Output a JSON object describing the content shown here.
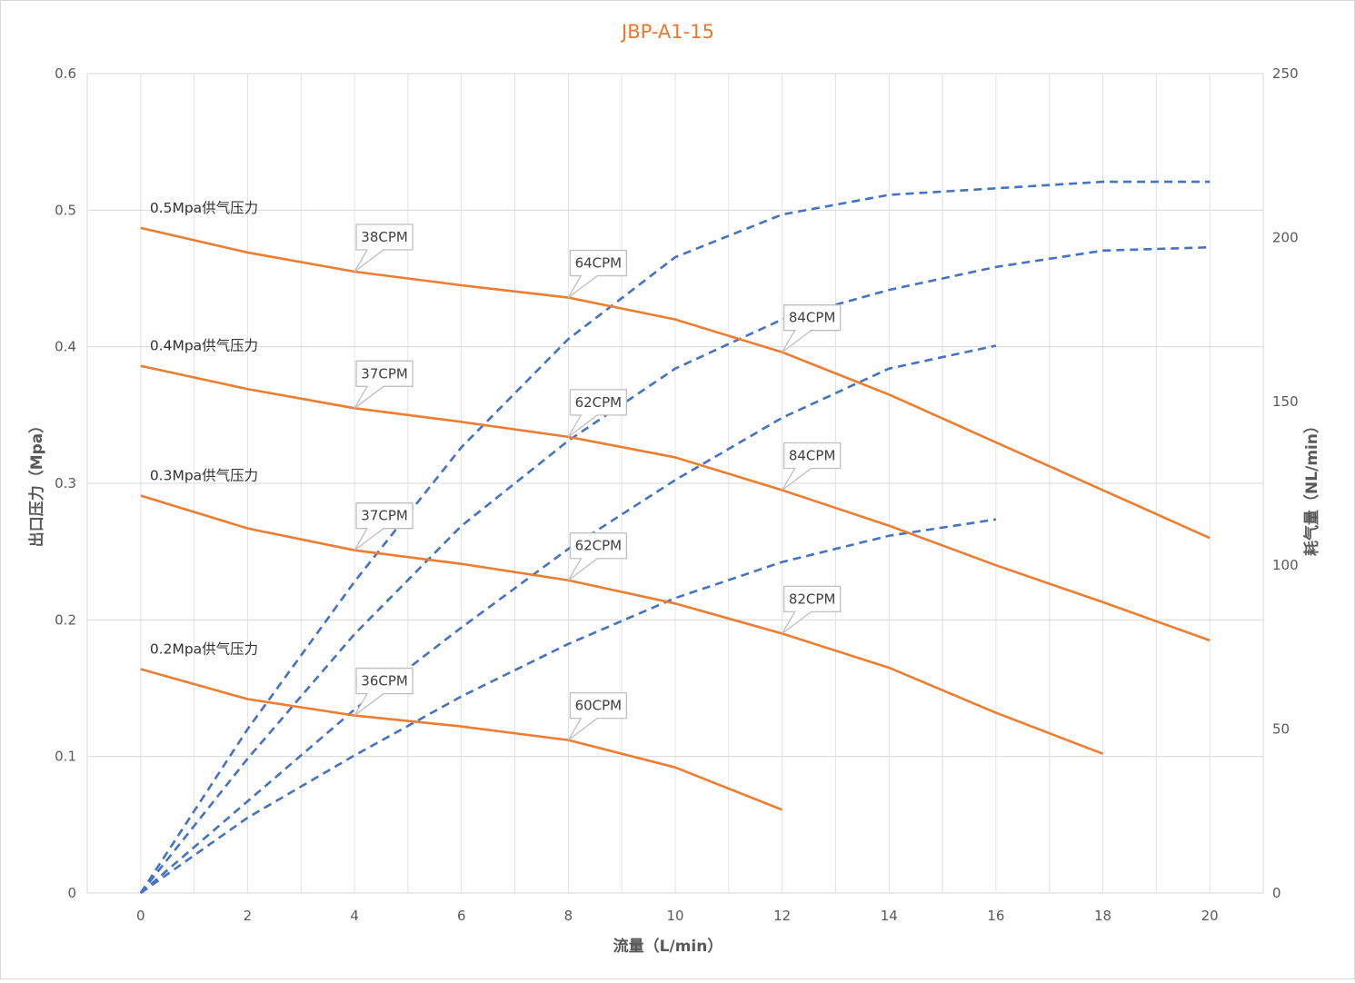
{
  "chart_data": {
    "type": "line",
    "title": "JBP-A1-15",
    "xlabel": "流量（L/min）",
    "ylabel_left": "出口压力（Mpa）",
    "ylabel_right": "耗气量（NL/min）",
    "x_ticks": [
      "0",
      "2",
      "4",
      "6",
      "8",
      "10",
      "12",
      "14",
      "16",
      "18",
      "20"
    ],
    "y_left_ticks": [
      "0",
      "0.1",
      "0.2",
      "0.3",
      "0.4",
      "0.5",
      "0.6"
    ],
    "y_right_ticks": [
      "0",
      "50",
      "100",
      "150",
      "200",
      "250"
    ],
    "xlim": [
      -1,
      21
    ],
    "ylim_left": [
      0,
      0.6
    ],
    "ylim_right": [
      0,
      250
    ],
    "grid": true,
    "colors": {
      "pressure": "#ed7d31",
      "air": "#4472c4",
      "title": "#e8782d"
    },
    "pressure_series": [
      {
        "name": "0.5Mpa供气压力",
        "x": [
          0,
          2,
          4,
          6,
          8,
          10,
          12,
          14,
          16,
          18,
          20
        ],
        "y": [
          0.487,
          0.469,
          0.455,
          0.445,
          0.436,
          0.42,
          0.396,
          0.365,
          0.33,
          0.295,
          0.26
        ]
      },
      {
        "name": "0.4Mpa供气压力",
        "x": [
          0,
          2,
          4,
          6,
          8,
          10,
          12,
          14,
          16,
          18,
          20
        ],
        "y": [
          0.386,
          0.369,
          0.355,
          0.345,
          0.334,
          0.319,
          0.295,
          0.269,
          0.24,
          0.213,
          0.185
        ]
      },
      {
        "name": "0.3Mpa供气压力",
        "x": [
          0,
          2,
          4,
          6,
          8,
          10,
          12,
          14,
          16,
          18
        ],
        "y": [
          0.291,
          0.267,
          0.251,
          0.241,
          0.229,
          0.212,
          0.19,
          0.165,
          0.132,
          0.102
        ]
      },
      {
        "name": "0.2Mpa供气压力",
        "x": [
          0,
          2,
          4,
          6,
          8,
          10,
          12
        ],
        "y": [
          0.164,
          0.142,
          0.13,
          0.122,
          0.112,
          0.092,
          0.061
        ]
      }
    ],
    "air_series": [
      {
        "x": [
          0,
          2,
          4,
          6,
          8,
          10,
          12,
          14,
          16,
          18,
          20
        ],
        "y": [
          0,
          50,
          95,
          136,
          169,
          194,
          207,
          213,
          215,
          217,
          217
        ]
      },
      {
        "x": [
          0,
          2,
          4,
          6,
          8,
          10,
          12,
          14,
          16,
          18,
          20
        ],
        "y": [
          0,
          41,
          79,
          112,
          138,
          160,
          175,
          184,
          191,
          196,
          197
        ]
      },
      {
        "x": [
          0,
          2,
          4,
          6,
          8,
          10,
          12,
          14,
          16
        ],
        "y": [
          0,
          28,
          56,
          81,
          105,
          126,
          145,
          160,
          167
        ]
      },
      {
        "x": [
          0,
          2,
          4,
          6,
          8,
          10,
          12,
          14,
          16
        ],
        "y": [
          0,
          23,
          42,
          60,
          76,
          90,
          101,
          109,
          114
        ]
      }
    ],
    "callouts": [
      {
        "text": "38CPM",
        "x": 4,
        "y": 0.455
      },
      {
        "text": "64CPM",
        "x": 8,
        "y": 0.436
      },
      {
        "text": "84CPM",
        "x": 12,
        "y": 0.396
      },
      {
        "text": "37CPM",
        "x": 4,
        "y": 0.355
      },
      {
        "text": "62CPM",
        "x": 8,
        "y": 0.334
      },
      {
        "text": "84CPM",
        "x": 12,
        "y": 0.295
      },
      {
        "text": "37CPM",
        "x": 4,
        "y": 0.251
      },
      {
        "text": "62CPM",
        "x": 8,
        "y": 0.229
      },
      {
        "text": "82CPM",
        "x": 12,
        "y": 0.19
      },
      {
        "text": "36CPM",
        "x": 4,
        "y": 0.13
      },
      {
        "text": "60CPM",
        "x": 8,
        "y": 0.112
      }
    ]
  }
}
